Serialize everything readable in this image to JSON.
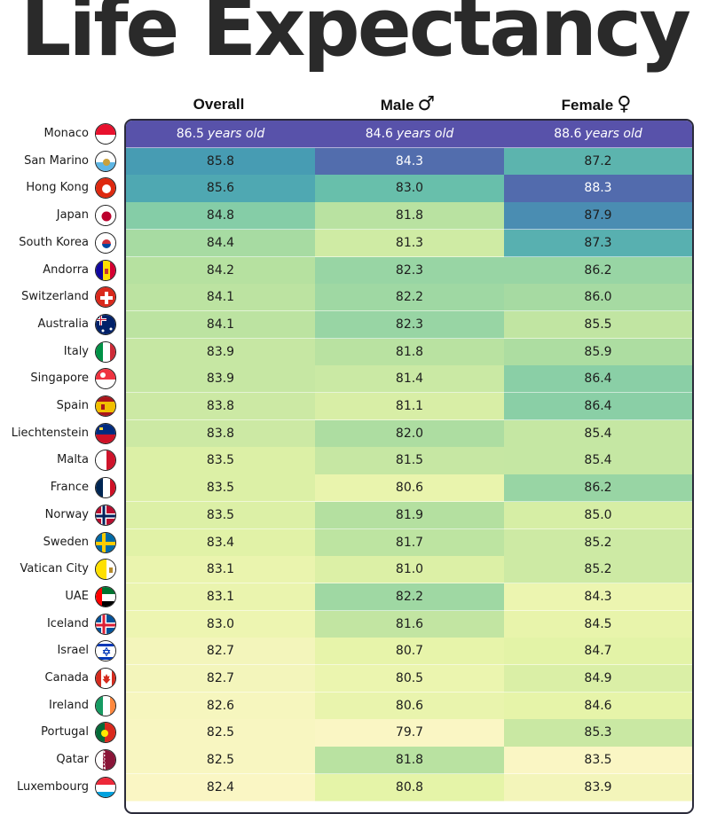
{
  "title": "Life Expectancy",
  "chart_data": {
    "type": "table",
    "title": "Life Expectancy",
    "columns": [
      {
        "key": "overall",
        "label": "Overall",
        "symbol": ""
      },
      {
        "key": "male",
        "label": "Male",
        "symbol": "♂"
      },
      {
        "key": "female",
        "label": "Female",
        "symbol": "♀"
      }
    ],
    "unit_label": "years old",
    "rows": [
      {
        "country": "Monaco",
        "flag": "monaco-flag",
        "overall": 86.5,
        "male": 84.6,
        "female": 88.6
      },
      {
        "country": "San Marino",
        "flag": "san-marino-flag",
        "overall": 85.8,
        "male": 84.3,
        "female": 87.2
      },
      {
        "country": "Hong Kong",
        "flag": "hong-kong-flag",
        "overall": 85.6,
        "male": 83.0,
        "female": 88.3
      },
      {
        "country": "Japan",
        "flag": "japan-flag",
        "overall": 84.8,
        "male": 81.8,
        "female": 87.9
      },
      {
        "country": "South Korea",
        "flag": "south-korea-flag",
        "overall": 84.4,
        "male": 81.3,
        "female": 87.3
      },
      {
        "country": "Andorra",
        "flag": "andorra-flag",
        "overall": 84.2,
        "male": 82.3,
        "female": 86.2
      },
      {
        "country": "Switzerland",
        "flag": "switzerland-flag",
        "overall": 84.1,
        "male": 82.2,
        "female": 86.0
      },
      {
        "country": "Australia",
        "flag": "australia-flag",
        "overall": 84.1,
        "male": 82.3,
        "female": 85.5
      },
      {
        "country": "Italy",
        "flag": "italy-flag",
        "overall": 83.9,
        "male": 81.8,
        "female": 85.9
      },
      {
        "country": "Singapore",
        "flag": "singapore-flag",
        "overall": 83.9,
        "male": 81.4,
        "female": 86.4
      },
      {
        "country": "Spain",
        "flag": "spain-flag",
        "overall": 83.8,
        "male": 81.1,
        "female": 86.4
      },
      {
        "country": "Liechtenstein",
        "flag": "liechtenstein-flag",
        "overall": 83.8,
        "male": 82.0,
        "female": 85.4
      },
      {
        "country": "Malta",
        "flag": "malta-flag",
        "overall": 83.5,
        "male": 81.5,
        "female": 85.4
      },
      {
        "country": "France",
        "flag": "france-flag",
        "overall": 83.5,
        "male": 80.6,
        "female": 86.2
      },
      {
        "country": "Norway",
        "flag": "norway-flag",
        "overall": 83.5,
        "male": 81.9,
        "female": 85.0
      },
      {
        "country": "Sweden",
        "flag": "sweden-flag",
        "overall": 83.4,
        "male": 81.7,
        "female": 85.2
      },
      {
        "country": "Vatican City",
        "flag": "vatican-city-flag",
        "overall": 83.1,
        "male": 81.0,
        "female": 85.2
      },
      {
        "country": "UAE",
        "flag": "uae-flag",
        "overall": 83.1,
        "male": 82.2,
        "female": 84.3
      },
      {
        "country": "Iceland",
        "flag": "iceland-flag",
        "overall": 83.0,
        "male": 81.6,
        "female": 84.5
      },
      {
        "country": "Israel",
        "flag": "israel-flag",
        "overall": 82.7,
        "male": 80.7,
        "female": 84.7
      },
      {
        "country": "Canada",
        "flag": "canada-flag",
        "overall": 82.7,
        "male": 80.5,
        "female": 84.9
      },
      {
        "country": "Ireland",
        "flag": "ireland-flag",
        "overall": 82.6,
        "male": 80.6,
        "female": 84.6
      },
      {
        "country": "Portugal",
        "flag": "portugal-flag",
        "overall": 82.5,
        "male": 79.7,
        "female": 85.3
      },
      {
        "country": "Qatar",
        "flag": "qatar-flag",
        "overall": 82.5,
        "male": 81.8,
        "female": 83.5
      },
      {
        "country": "Luxembourg",
        "flag": "luxembourg-flag",
        "overall": 82.4,
        "male": 80.8,
        "female": 83.9
      }
    ]
  }
}
